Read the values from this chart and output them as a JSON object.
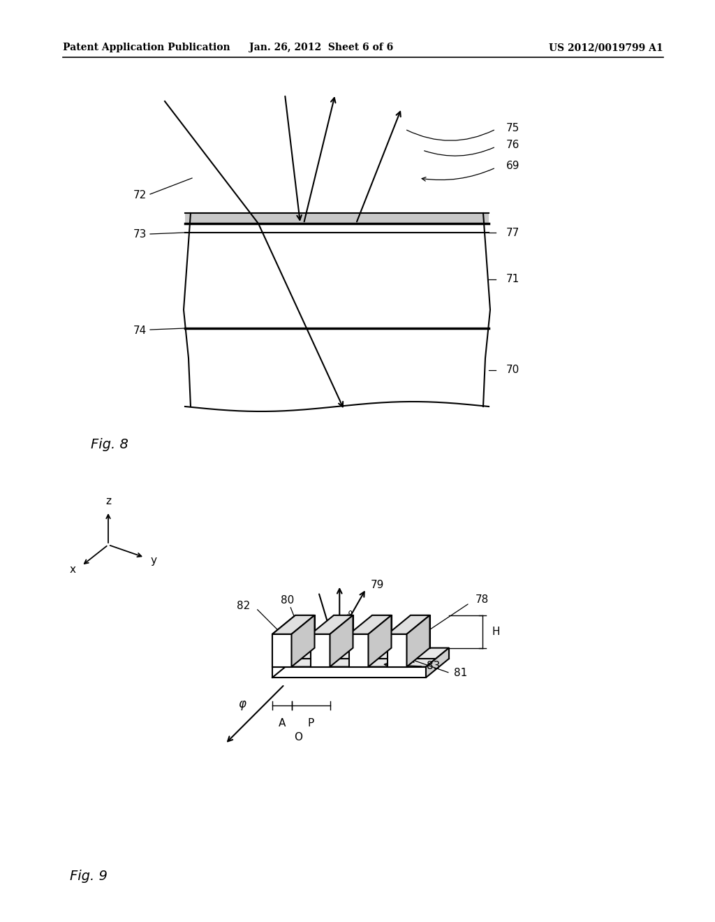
{
  "background_color": "#ffffff",
  "header_left": "Patent Application Publication",
  "header_center": "Jan. 26, 2012  Sheet 6 of 6",
  "header_right": "US 2012/0019799 A1",
  "fig8_label": "Fig. 8",
  "fig9_label": "Fig. 9"
}
